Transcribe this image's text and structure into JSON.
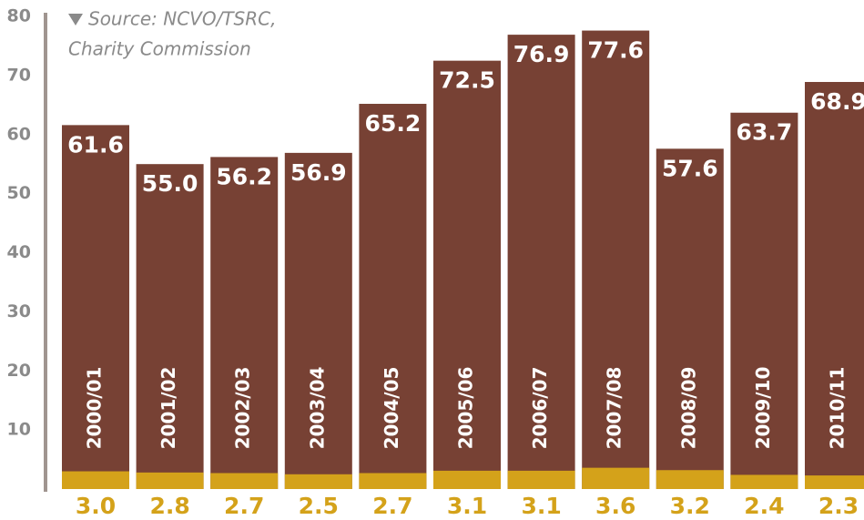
{
  "chart_data": {
    "type": "bar",
    "source": [
      "Source: NCVO/TSRC,",
      "Charity Commission"
    ],
    "categories": [
      "2000/01",
      "2001/02",
      "2002/03",
      "2003/04",
      "2004/05",
      "2005/06",
      "2006/07",
      "2007/08",
      "2008/09",
      "2009/10",
      "2010/11"
    ],
    "series": [
      {
        "color": "#774134",
        "values": [
          61.6,
          55.0,
          56.2,
          56.9,
          65.2,
          72.5,
          76.9,
          77.6,
          57.6,
          63.7,
          68.9
        ],
        "value_labels": [
          "61.6",
          "55.0",
          "56.2",
          "56.9",
          "65.2",
          "72.5",
          "76.9",
          "77.6",
          "57.6",
          "63.7",
          "68.9"
        ]
      },
      {
        "color": "#d4a21a",
        "values": [
          3.0,
          2.8,
          2.7,
          2.5,
          2.7,
          3.1,
          3.1,
          3.6,
          3.2,
          2.4,
          2.3
        ],
        "value_labels": [
          "3.0",
          "2.8",
          "2.7",
          "2.5",
          "2.7",
          "3.1",
          "3.1",
          "3.6",
          "3.2",
          "2.4",
          "2.3"
        ]
      }
    ],
    "ylim": [
      0,
      80
    ],
    "yticks": [
      10,
      20,
      30,
      40,
      50,
      60,
      70,
      80
    ]
  }
}
